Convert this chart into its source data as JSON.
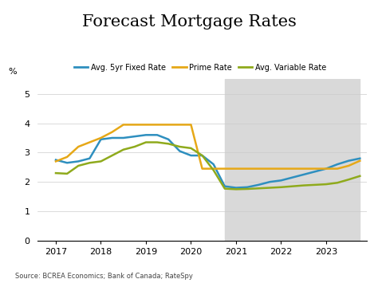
{
  "title": "Forecast Mortgage Rates",
  "ylabel": "%",
  "source": "Source: BCREA Economics; Bank of Canada; RateSpy",
  "ylim": [
    0,
    5.5
  ],
  "yticks": [
    0,
    1,
    2,
    3,
    4,
    5
  ],
  "forecast_start": 2020.75,
  "forecast_end": 2023.75,
  "background_color": "#ffffff",
  "forecast_bg_color": "#d9d9d9",
  "xlim": [
    2016.6,
    2023.9
  ],
  "xticks": [
    2017,
    2018,
    2019,
    2020,
    2021,
    2022,
    2023
  ],
  "series": {
    "fixed": {
      "label": "Avg. 5yr Fixed Rate",
      "color": "#2e8fbf",
      "x": [
        2017.0,
        2017.25,
        2017.5,
        2017.75,
        2018.0,
        2018.25,
        2018.5,
        2018.75,
        2019.0,
        2019.25,
        2019.5,
        2019.75,
        2020.0,
        2020.25,
        2020.5,
        2020.75,
        2021.0,
        2021.25,
        2021.5,
        2021.75,
        2022.0,
        2022.25,
        2022.5,
        2022.75,
        2023.0,
        2023.25,
        2023.5,
        2023.75
      ],
      "y": [
        2.75,
        2.65,
        2.7,
        2.8,
        3.45,
        3.5,
        3.5,
        3.55,
        3.6,
        3.6,
        3.45,
        3.05,
        2.9,
        2.9,
        2.6,
        1.85,
        1.8,
        1.82,
        1.9,
        2.0,
        2.05,
        2.15,
        2.25,
        2.35,
        2.45,
        2.6,
        2.72,
        2.8
      ]
    },
    "prime": {
      "label": "Prime Rate",
      "color": "#e6a817",
      "x": [
        2017.0,
        2017.25,
        2017.5,
        2017.75,
        2018.0,
        2018.25,
        2018.5,
        2018.75,
        2019.0,
        2019.25,
        2019.5,
        2019.75,
        2020.0,
        2020.25,
        2020.5,
        2020.75,
        2021.0,
        2021.25,
        2021.5,
        2021.75,
        2022.0,
        2022.25,
        2022.5,
        2022.75,
        2023.0,
        2023.25,
        2023.5,
        2023.75
      ],
      "y": [
        2.7,
        2.85,
        3.2,
        3.35,
        3.5,
        3.7,
        3.95,
        3.95,
        3.95,
        3.95,
        3.95,
        3.95,
        3.95,
        2.45,
        2.45,
        2.45,
        2.45,
        2.45,
        2.45,
        2.45,
        2.45,
        2.45,
        2.45,
        2.45,
        2.45,
        2.45,
        2.55,
        2.72
      ]
    },
    "variable": {
      "label": "Avg. Variable Rate",
      "color": "#8faa1c",
      "x": [
        2017.0,
        2017.25,
        2017.5,
        2017.75,
        2018.0,
        2018.25,
        2018.5,
        2018.75,
        2019.0,
        2019.25,
        2019.5,
        2019.75,
        2020.0,
        2020.25,
        2020.5,
        2020.75,
        2021.0,
        2021.25,
        2021.5,
        2021.75,
        2022.0,
        2022.25,
        2022.5,
        2022.75,
        2023.0,
        2023.25,
        2023.5,
        2023.75
      ],
      "y": [
        2.3,
        2.28,
        2.55,
        2.65,
        2.7,
        2.9,
        3.1,
        3.2,
        3.35,
        3.35,
        3.3,
        3.2,
        3.15,
        2.9,
        2.4,
        1.77,
        1.75,
        1.76,
        1.78,
        1.8,
        1.82,
        1.85,
        1.88,
        1.9,
        1.92,
        1.97,
        2.08,
        2.2
      ]
    }
  }
}
